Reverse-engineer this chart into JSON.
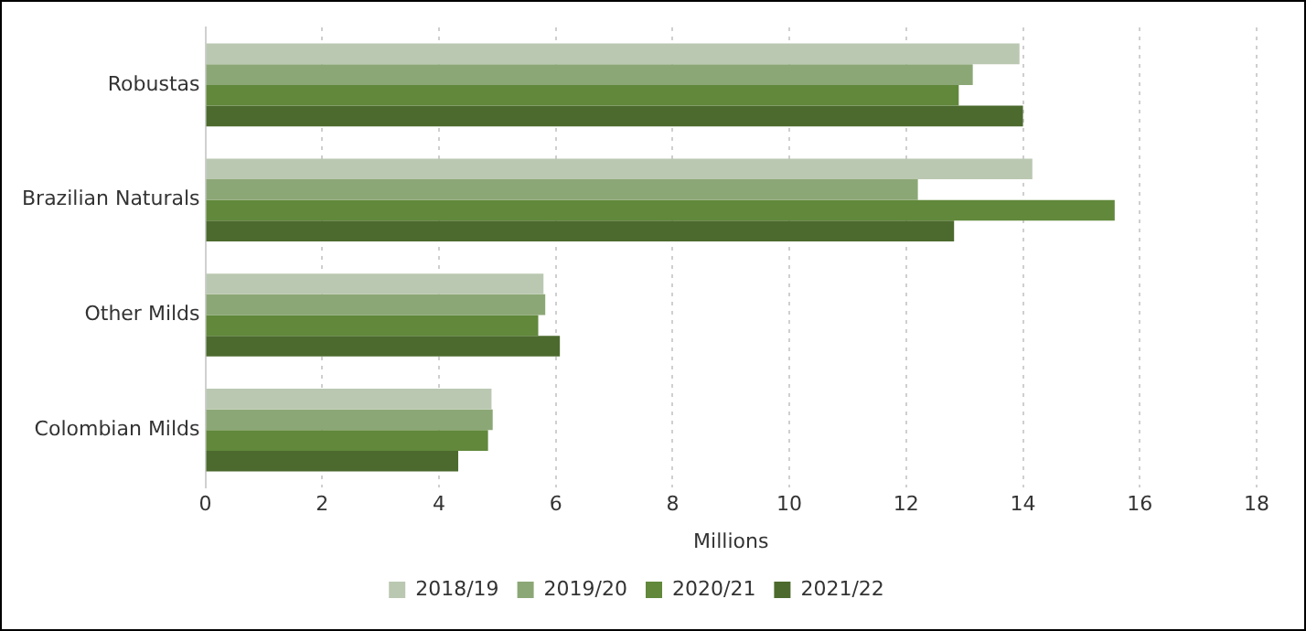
{
  "chart_data": {
    "type": "bar",
    "orientation": "horizontal",
    "xlabel": "Millions",
    "categories": [
      "Robustas",
      "Brazilian Naturals",
      "Other Milds",
      "Colombian Milds"
    ],
    "series": [
      {
        "name": "2018/19",
        "color": "#bac8b1",
        "values": [
          13.94,
          14.16,
          5.79,
          4.9
        ]
      },
      {
        "name": "2019/20",
        "color": "#8ca776",
        "values": [
          13.14,
          12.2,
          5.82,
          4.92
        ]
      },
      {
        "name": "2020/21",
        "color": "#61883b",
        "values": [
          12.9,
          15.57,
          5.7,
          4.84
        ]
      },
      {
        "name": "2021/22",
        "color": "#4c6a2e",
        "values": [
          14.0,
          12.82,
          6.07,
          4.33
        ]
      }
    ],
    "xlim": [
      0,
      18
    ],
    "xticks": [
      0,
      2,
      4,
      6,
      8,
      10,
      12,
      14,
      16,
      18
    ],
    "grid": "x",
    "legend": "bottom"
  }
}
